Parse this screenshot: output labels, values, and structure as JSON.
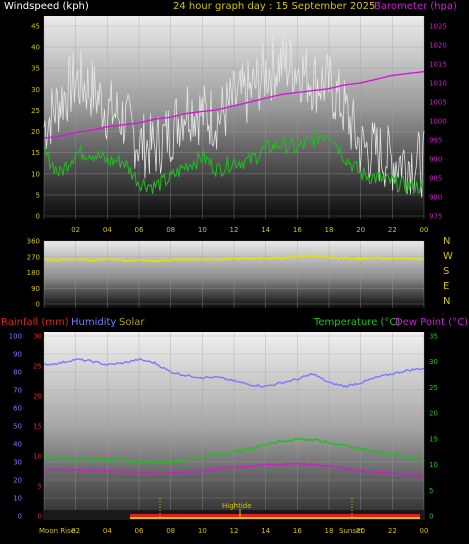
{
  "colors": {
    "windspeed": "#ffffff",
    "gust": "#e6e6e6",
    "avgwind": "#19c419",
    "barometer": "#d21ad2",
    "header_title": "#d6c300",
    "barometer_label": "#d21ad2",
    "direction": "#e3e300",
    "rainfall": "#e02020",
    "humidity": "#7a7aff",
    "solar": "#b5a200",
    "temperature": "#19c419",
    "dewpoint": "#d21ad2",
    "hightide": "#d6c300",
    "axis_left_top": "#d6c300",
    "axis_right_top": "#d21ad2",
    "axis_rain": "#e02020",
    "axis_temp": "#19c419"
  },
  "header": {
    "left": "Windspeed (kph)",
    "center": "24 hour graph day : 15 September 2025",
    "right": "Barometer (hpa)"
  },
  "direction_letters": [
    "N",
    "W",
    "S",
    "E",
    "N"
  ],
  "bottom_header": {
    "rainfall": "Rainfall (mm)",
    "humidity": "Humidity",
    "solar": "Solar",
    "temperature": "Temperature (°C)",
    "dewpoint": "Dew Point (°C)"
  },
  "annotations": {
    "moonrise": "Moon Rise",
    "hightide": "Hightide",
    "sunset": "Sunset"
  },
  "chart_data": [
    {
      "type": "line",
      "title": "24 hour graph day : 15 September 2025",
      "x_ticks": [
        "02",
        "04",
        "06",
        "08",
        "10",
        "12",
        "14",
        "16",
        "18",
        "20",
        "22",
        "00"
      ],
      "ylabel_left": "Windspeed (kph)",
      "ylabel_right": "Barometer (hpa)",
      "ylim_left": [
        0,
        45
      ],
      "y_ticks_left": [
        0,
        5,
        10,
        15,
        20,
        25,
        30,
        35,
        40,
        45
      ],
      "ylim_right": [
        975,
        1025
      ],
      "y_ticks_right": [
        975,
        980,
        985,
        990,
        995,
        1000,
        1005,
        1010,
        1015,
        1020,
        1025
      ],
      "x_hours": [
        0,
        1,
        2,
        3,
        4,
        5,
        6,
        7,
        8,
        9,
        10,
        11,
        12,
        13,
        14,
        15,
        16,
        17,
        18,
        19,
        20,
        21,
        22,
        23,
        24
      ],
      "series": [
        {
          "name": "gust",
          "values": [
            22,
            28,
            33,
            31,
            26,
            24,
            18,
            17,
            21,
            27,
            25,
            24,
            28,
            30,
            35,
            37,
            36,
            33,
            32,
            26,
            17,
            16,
            14,
            14,
            13
          ]
        },
        {
          "name": "average",
          "values": [
            15,
            10,
            15,
            15,
            13,
            13,
            8,
            7,
            9,
            12,
            14,
            11,
            13,
            13,
            16,
            17,
            16,
            18,
            20,
            14,
            10,
            9,
            8,
            7,
            7
          ]
        },
        {
          "name": "barometer",
          "values": [
            995.5,
            996,
            997,
            997.5,
            998.5,
            999,
            999.5,
            1000.5,
            1001,
            1002,
            1002.5,
            1003,
            1004,
            1005,
            1006,
            1007,
            1007.5,
            1008,
            1008.5,
            1009.5,
            1010,
            1011,
            1012,
            1012.5,
            1013
          ]
        }
      ]
    },
    {
      "type": "line",
      "ylim": [
        0,
        360
      ],
      "y_ticks": [
        0,
        90,
        180,
        270,
        360
      ],
      "x_hours": [
        0,
        1,
        2,
        3,
        4,
        5,
        6,
        7,
        8,
        9,
        10,
        11,
        12,
        13,
        14,
        15,
        16,
        17,
        18,
        19,
        20,
        21,
        22,
        23,
        24
      ],
      "series": [
        {
          "name": "direction",
          "values": [
            255,
            252,
            258,
            250,
            256,
            248,
            250,
            245,
            252,
            255,
            257,
            256,
            258,
            260,
            262,
            264,
            270,
            275,
            265,
            262,
            260,
            262,
            260,
            258,
            258
          ]
        }
      ]
    },
    {
      "type": "line",
      "x_ticks": [
        "02",
        "04",
        "06",
        "08",
        "10",
        "12",
        "14",
        "16",
        "18",
        "20",
        "22",
        "00"
      ],
      "ylabel_left": "Humidity",
      "ylim_humidity": [
        0,
        100
      ],
      "y_ticks_humidity": [
        0,
        10,
        20,
        30,
        40,
        50,
        60,
        70,
        80,
        90,
        100
      ],
      "ylim_rain": [
        0,
        30
      ],
      "y_ticks_rain": [
        0,
        5,
        10,
        15,
        20,
        25,
        30
      ],
      "ylim_temp": [
        0,
        35
      ],
      "y_ticks_temp": [
        0,
        5,
        10,
        15,
        20,
        25,
        30,
        35
      ],
      "x_hours": [
        0,
        1,
        2,
        3,
        4,
        5,
        6,
        7,
        8,
        9,
        10,
        11,
        12,
        13,
        14,
        15,
        16,
        17,
        18,
        19,
        20,
        21,
        22,
        23,
        24
      ],
      "series": [
        {
          "name": "humidity",
          "values": [
            84,
            85,
            87,
            86,
            84,
            85,
            87,
            85,
            80,
            78,
            77,
            77,
            75,
            73,
            72,
            74,
            76,
            79,
            74,
            72,
            74,
            77,
            79,
            81,
            82
          ]
        },
        {
          "name": "temperature",
          "values": [
            11.5,
            11.3,
            11,
            11,
            11,
            10.8,
            10.5,
            10.5,
            10.5,
            11,
            11.5,
            12,
            12.5,
            13,
            14,
            14.5,
            15,
            14.8,
            14.2,
            13.8,
            13,
            12.5,
            12,
            11.3,
            11
          ]
        },
        {
          "name": "dewpoint",
          "values": [
            9,
            9,
            9,
            8.9,
            8.8,
            8.7,
            8.5,
            8.3,
            8.4,
            8.6,
            8.8,
            9.2,
            9.5,
            9.6,
            10,
            10,
            10.2,
            10,
            9.7,
            9.2,
            8.8,
            8.5,
            8.3,
            8,
            7.8
          ]
        }
      ]
    }
  ]
}
